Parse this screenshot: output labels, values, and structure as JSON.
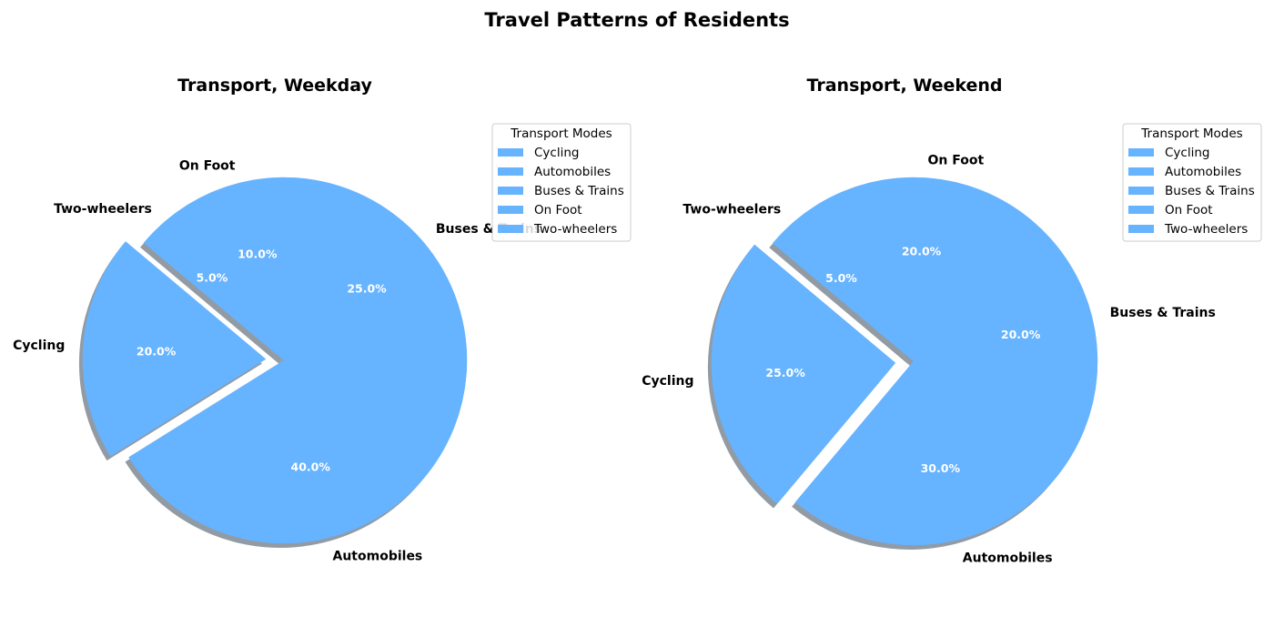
{
  "figure": {
    "title": "Travel Patterns of Residents"
  },
  "chart_data": [
    {
      "type": "pie",
      "title": "Transport, Weekday",
      "categories": [
        "Cycling",
        "Automobiles",
        "Buses & Trains",
        "On Foot",
        "Two-wheelers"
      ],
      "values": [
        20,
        40,
        25,
        10,
        5
      ],
      "value_labels": [
        "20.0%",
        "40.0%",
        "25.0%",
        "10.0%",
        "5.0%"
      ],
      "exploded": "Cycling",
      "shadow": true,
      "slice_color": "#66b3ff",
      "label_color": "#ffffff",
      "legend": {
        "title": "Transport Modes",
        "entries": [
          "Cycling",
          "Automobiles",
          "Buses & Trains",
          "On Foot",
          "Two-wheelers"
        ],
        "placement": "upper-right"
      }
    },
    {
      "type": "pie",
      "title": "Transport, Weekend",
      "categories": [
        "Cycling",
        "Automobiles",
        "Buses & Trains",
        "On Foot",
        "Two-wheelers"
      ],
      "values": [
        25,
        30,
        20,
        20,
        5
      ],
      "value_labels": [
        "25.0%",
        "30.0%",
        "20.0%",
        "20.0%",
        "5.0%"
      ],
      "exploded": "Cycling",
      "shadow": true,
      "slice_color": "#66b3ff",
      "label_color": "#ffffff",
      "legend": {
        "title": "Transport Modes",
        "entries": [
          "Cycling",
          "Automobiles",
          "Buses & Trains",
          "On Foot",
          "Two-wheelers"
        ],
        "placement": "upper-right"
      }
    }
  ]
}
